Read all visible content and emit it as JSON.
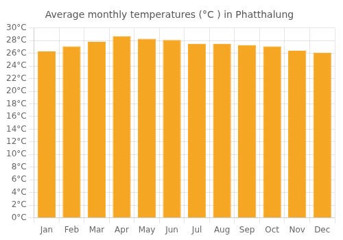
{
  "chart_data": {
    "type": "bar",
    "title": "Average monthly temperatures (°C ) in Phatthalung",
    "categories": [
      "Jan",
      "Feb",
      "Mar",
      "Apr",
      "May",
      "Jun",
      "Jul",
      "Aug",
      "Sep",
      "Oct",
      "Nov",
      "Dec"
    ],
    "values": [
      26.3,
      27.1,
      27.8,
      28.7,
      28.3,
      28.1,
      27.5,
      27.5,
      27.3,
      27.1,
      26.4,
      26.1
    ],
    "color": "#F5A623",
    "ylim": [
      0,
      30
    ],
    "yticks": [
      {
        "value": 0,
        "label": "0°C"
      },
      {
        "value": 2,
        "label": "2°C"
      },
      {
        "value": 4,
        "label": "4°C"
      },
      {
        "value": 6,
        "label": "6°C"
      },
      {
        "value": 8,
        "label": "8°C"
      },
      {
        "value": 10,
        "label": "10°C"
      },
      {
        "value": 12,
        "label": "12°C"
      },
      {
        "value": 14,
        "label": "14°C"
      },
      {
        "value": 16,
        "label": "16°C"
      },
      {
        "value": 18,
        "label": "18°C"
      },
      {
        "value": 20,
        "label": "20°C"
      },
      {
        "value": 22,
        "label": "22°C"
      },
      {
        "value": 24,
        "label": "24°C"
      },
      {
        "value": 26,
        "label": "26°C"
      },
      {
        "value": 28,
        "label": "28°C"
      },
      {
        "value": 30,
        "label": "30°C"
      }
    ],
    "grid": true
  }
}
